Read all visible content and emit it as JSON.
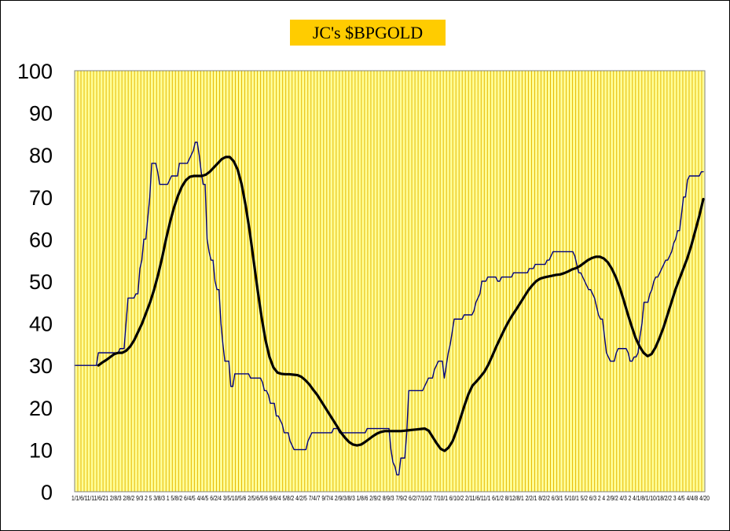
{
  "chart_data": {
    "type": "line",
    "title": "JC's $BPGOLD",
    "xlabel": "",
    "ylabel": "",
    "ylim": [
      0,
      100
    ],
    "yticks": [
      0,
      10,
      20,
      30,
      40,
      50,
      60,
      70,
      80,
      90,
      100
    ],
    "grid": "vertical",
    "legend": "none",
    "colors": {
      "plot_background": "#ffff99",
      "vertical_gridlines": "#e6b800",
      "title_background": "#ffcc00",
      "raw_line": "#000080",
      "smoothed_line": "#000000"
    },
    "x_tick_labels": "1/1/6/11/11/6/21 2/8/3 2/8/2 9/3 2 5 3/8/3 1 5/8/2 6/4/5 4/4/5 6/2/4 3/5/10/5/6 2/5/6/5/6 9/6/4 5/8/2 4/2/5 7/4/7 9/7/4 2/9/3/8/3 1/8/6 2/9/2 8/9/3 7/9/2 6/2/7/10/2 7/10/1 6/10/2 2/11/6/11/1 6/1/2 8/12/8/1 2/2/1 8/2/2 6/3/1 5/10/1 5/2 6/3 2 4 2/9/2 4/3 2 4/1/8/1/10/18/2/2 3 4/5 4/4/8 4/20",
    "series": [
      {
        "values": [
          30,
          30,
          30,
          30,
          30,
          30,
          30,
          30,
          30,
          30,
          30,
          30,
          33,
          33,
          33,
          33,
          33,
          33,
          33,
          33,
          33,
          33,
          33,
          34,
          34,
          34,
          40,
          46,
          46,
          46,
          46,
          47,
          47,
          53,
          55,
          60,
          60,
          65,
          70,
          78,
          78,
          78,
          76,
          73,
          73,
          73,
          73,
          73,
          74,
          75,
          75,
          75,
          75,
          78,
          78,
          78,
          78,
          78,
          79,
          80,
          81,
          83,
          83,
          80,
          76,
          73,
          73,
          60,
          57,
          55,
          55,
          50,
          48,
          48,
          40,
          35,
          31,
          31,
          31,
          25,
          25,
          28,
          28,
          28,
          28,
          28,
          28,
          28,
          28,
          27,
          27,
          27,
          27,
          27,
          27,
          26,
          24,
          24,
          23,
          21,
          21,
          21,
          18,
          18,
          17,
          16,
          14,
          14,
          14,
          12,
          11,
          10,
          10,
          10,
          10,
          10,
          10,
          10,
          12,
          13,
          14,
          14,
          14,
          14,
          14,
          14,
          14,
          14,
          14,
          14,
          14,
          15,
          15,
          15,
          14,
          14,
          14,
          14,
          14,
          14,
          14,
          14,
          14,
          14,
          14,
          14,
          14,
          14,
          15,
          15,
          15,
          15,
          15,
          15,
          15,
          15,
          15,
          15,
          15,
          15,
          10,
          7,
          6,
          4,
          4,
          8,
          8,
          8,
          14,
          24,
          24,
          24,
          24,
          24,
          24,
          24,
          24,
          25,
          26,
          27,
          27,
          27,
          29,
          30,
          31,
          31,
          31,
          27,
          30,
          33,
          35,
          38,
          41,
          41,
          41,
          41,
          41,
          42,
          42,
          42,
          42,
          42,
          43,
          45,
          46,
          47,
          50,
          50,
          50,
          51,
          51,
          51,
          51,
          51,
          50,
          50,
          51,
          51,
          51,
          51,
          51,
          51,
          52,
          52,
          52,
          52,
          52,
          52,
          52,
          52,
          53,
          53,
          53,
          54,
          54,
          54,
          54,
          54,
          54,
          55,
          55,
          56,
          57,
          57,
          57,
          57,
          57,
          57,
          57,
          57,
          57,
          57,
          57,
          56,
          54,
          52,
          52,
          51,
          50,
          49,
          48,
          48,
          47,
          46,
          44,
          42,
          41,
          41,
          37,
          33,
          32,
          31,
          31,
          31,
          33,
          34,
          34,
          34,
          34,
          34,
          33,
          31,
          31,
          32,
          32,
          33,
          37,
          40,
          45,
          45,
          45,
          47,
          48,
          50,
          51,
          51,
          52,
          53,
          54,
          55,
          55,
          56,
          57,
          59,
          60,
          62,
          62,
          66,
          70,
          70,
          74,
          75,
          75,
          75,
          75,
          75,
          75,
          76,
          76
        ]
      },
      {
        "values": [
          30,
          30.7,
          31.3,
          32,
          32.7,
          33,
          33,
          33.5,
          34.5,
          36,
          38,
          40,
          42.5,
          45,
          48,
          51.5,
          55.5,
          60,
          64,
          67.5,
          70.3,
          72.5,
          74,
          74.8,
          75,
          75,
          75,
          75.3,
          76,
          77,
          78,
          79,
          79.5,
          79.5,
          78.5,
          76.5,
          73,
          68,
          62,
          55,
          48,
          41.5,
          36,
          32,
          29.5,
          28.3,
          28,
          27.9,
          27.9,
          27.8,
          27.7,
          27.3,
          26.5,
          25.5,
          24.2,
          23,
          21.5,
          20,
          18.5,
          17,
          15.5,
          14,
          12.8,
          11.8,
          11.2,
          11,
          11.2,
          11.8,
          12.5,
          13.2,
          13.8,
          14.2,
          14.4,
          14.4,
          14.4,
          14.4,
          14.4,
          14.5,
          14.6,
          14.7,
          14.8,
          14.9,
          15,
          14.5,
          13,
          11.5,
          10.2,
          9.7,
          10.5,
          12,
          14.5,
          17.5,
          20.5,
          23.2,
          25.2,
          26.2,
          27.3,
          28.5,
          30.2,
          32.3,
          34.5,
          36.5,
          38.5,
          40.3,
          41.9,
          43.3,
          44.8,
          46.3,
          47.8,
          49,
          50,
          50.6,
          50.9,
          51.1,
          51.3,
          51.5,
          51.6,
          51.9,
          52.3,
          52.8,
          53.1,
          53.6,
          54.3,
          55,
          55.5,
          55.8,
          55.8,
          55.4,
          54.5,
          53,
          51,
          48.5,
          45.5,
          42.3,
          39.3,
          36.5,
          34.5,
          33,
          32.2,
          32.7,
          34.3,
          36.5,
          39,
          42,
          45,
          48,
          50.5,
          53,
          55.5,
          58.5,
          62,
          65.5,
          69.5
        ]
      }
    ]
  }
}
